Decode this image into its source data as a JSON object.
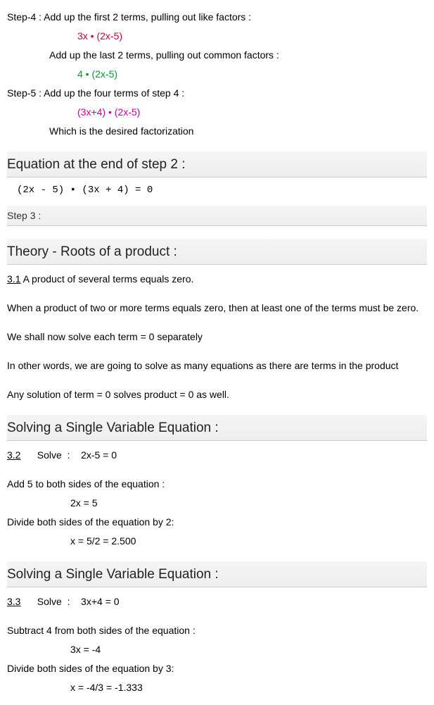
{
  "step4": {
    "intro": "Step-4 : Add up the first 2 terms, pulling out like factors :",
    "expr1": "3x • (2x-5)",
    "mid": "Add up the last 2 terms, pulling out common factors :",
    "expr2": "4 • (2x-5)"
  },
  "step5": {
    "intro": "Step-5 : Add up the four terms of step 4 :",
    "expr": "(3x+4)  •  (2x-5)",
    "tail": "Which is the desired factorization"
  },
  "eqEnd2": {
    "title": "Equation at the end of step  2  :",
    "expr": " (2x - 5) • (3x + 4)  = 0 "
  },
  "step3label": "Step  3  :",
  "theory": {
    "title": "Theory - Roots of a product :",
    "num": "3.1",
    "p1": "    A product of several terms equals zero.",
    "p2": " When a product of two or more terms equals zero, then at least one of the terms must be zero.",
    "p3": " We shall now solve each term = 0 separately",
    "p4": " In other words, we are going to solve as many equations as there are terms in the product",
    "p5": " Any solution of term = 0 solves product = 0 as well."
  },
  "solve32": {
    "title": "Solving a Single Variable Equation :",
    "num": "3.2",
    "solve": "      Solve  :    2x-5 = 0",
    "p1": " Add  5  to both sides of the equation :",
    "p2": "2x = 5",
    "p3": "Divide both sides of the equation by 2:",
    "p4": "x = 5/2 = 2.500"
  },
  "solve33": {
    "title": "Solving a Single Variable Equation :",
    "num": "3.3",
    "solve": "      Solve  :    3x+4 = 0",
    "p1": " Subtract  4  from both sides of the equation :",
    "p2": "3x = -4",
    "p3": "Divide both sides of the equation by 3:",
    "p4": "x = -4/3 = -1.333"
  }
}
